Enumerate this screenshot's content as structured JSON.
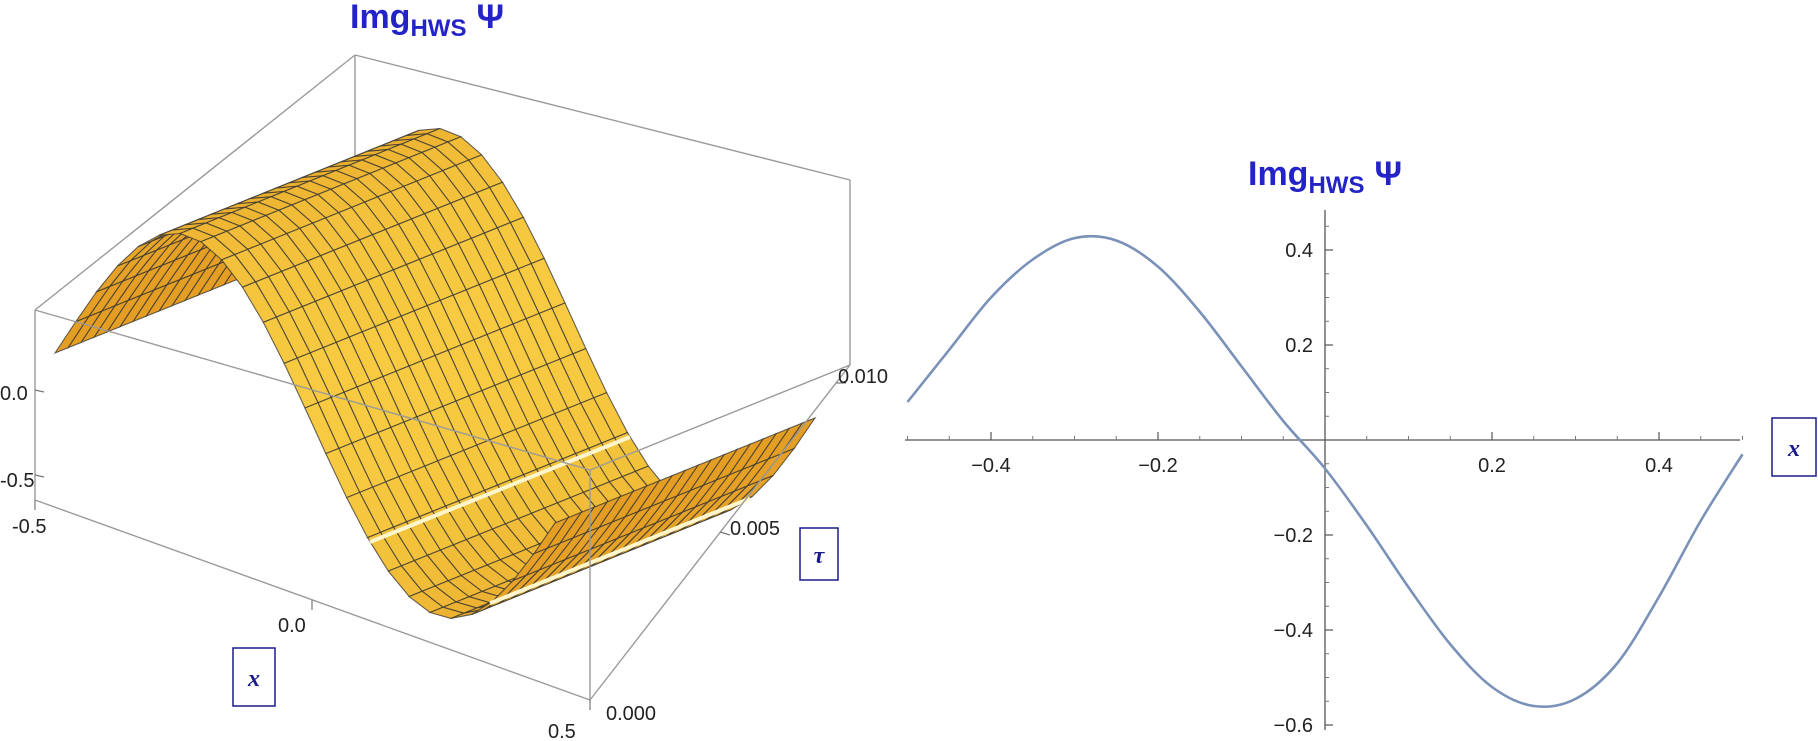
{
  "chart_data": [
    {
      "type": "surface3d",
      "title": "Img",
      "title_sub": "HWS",
      "title_symbol": "Ψ",
      "x_label": "x",
      "y_label": "τ",
      "x_range": [
        -0.5,
        0.5
      ],
      "y_range": [
        0,
        0.01
      ],
      "z_range": [
        -0.56,
        0.43
      ],
      "x_ticks": [
        "-0.5",
        "0.0",
        "0.5"
      ],
      "y_ticks": [
        "0.000",
        "0.005",
        "0.010"
      ],
      "z_ticks": [
        "0.0",
        "-0.5"
      ],
      "surface_color": "#f2b233",
      "mesh_color": "#333333",
      "highlight_color": "#fff6cc"
    },
    {
      "type": "line",
      "title": "Img",
      "title_sub": "HWS",
      "title_symbol": "Ψ",
      "x_label": "x",
      "xlim": [
        -0.5,
        0.5
      ],
      "ylim": [
        -0.6,
        0.45
      ],
      "x_ticks": [
        "-0.4",
        "-0.2",
        "0.2",
        "0.4"
      ],
      "y_ticks": [
        "0.4",
        "0.2",
        "-0.2",
        "-0.4",
        "-0.6"
      ],
      "series": [
        {
          "color": "#7a91b8",
          "x": [
            -0.5,
            -0.45,
            -0.4,
            -0.35,
            -0.3,
            -0.25,
            -0.2,
            -0.15,
            -0.1,
            -0.05,
            0.0,
            0.05,
            0.1,
            0.15,
            0.2,
            0.25,
            0.3,
            0.35,
            0.4,
            0.45,
            0.5
          ],
          "y": [
            0.08,
            0.19,
            0.3,
            0.38,
            0.425,
            0.42,
            0.365,
            0.27,
            0.155,
            0.04,
            -0.06,
            -0.18,
            -0.31,
            -0.43,
            -0.52,
            -0.56,
            -0.545,
            -0.47,
            -0.33,
            -0.17,
            -0.03
          ]
        }
      ]
    }
  ]
}
